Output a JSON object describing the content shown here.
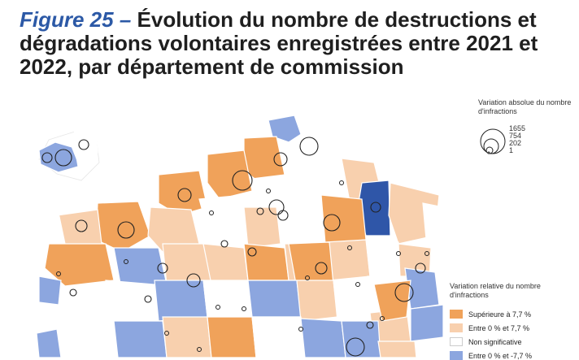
{
  "figure": {
    "label": "Figure 25 –",
    "title": "Évolution du nombre de destructions et dégradations volontaires enregistrées entre 2021 et 2022, par département de commission"
  },
  "size_legend": {
    "title": "Variation absolue du nombre d'infractions",
    "values": [
      "1655",
      "754",
      "202",
      "1"
    ]
  },
  "color_legend": {
    "title": "Variation relative du nombre d'infractions",
    "classes": [
      {
        "label": "Supérieure à 7,7 %",
        "color": "#f0a25a"
      },
      {
        "label": "Entre 0 % et 7,7 %",
        "color": "#f8d0ae"
      },
      {
        "label": "Non significative",
        "color": "#ffffff"
      },
      {
        "label": "Entre 0 % et -7,7 %",
        "color": "#8ca6df"
      }
    ]
  },
  "colors": {
    "strong_increase": "#f0a25a",
    "increase": "#f8d0ae",
    "not_significant": "#ffffff",
    "decrease": "#8ca6df",
    "strong_decrease": "#2f56a8",
    "border": "#ffffff"
  }
}
